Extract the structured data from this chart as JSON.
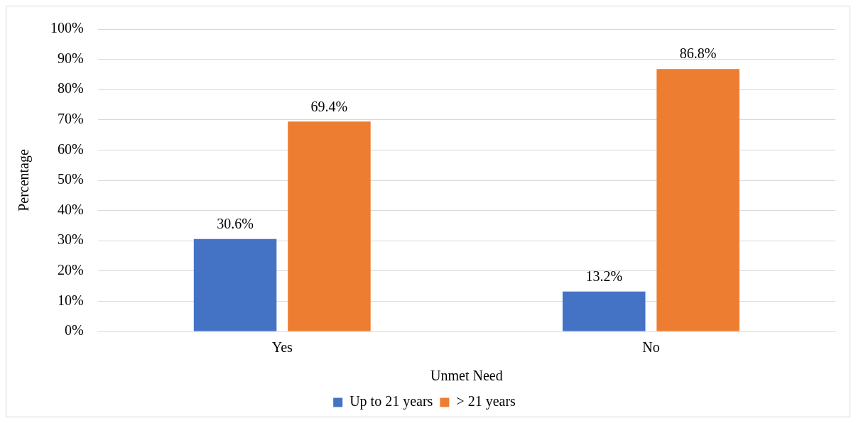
{
  "chart_data": {
    "type": "bar",
    "xlabel": "Unmet Need",
    "ylabel": "Percentage",
    "categories": [
      "Yes",
      "No"
    ],
    "series": [
      {
        "name": "Up to 21 years",
        "color": "#4472c4",
        "values": [
          30.6,
          13.2
        ],
        "value_labels": [
          "30.6%",
          "13.2%"
        ]
      },
      {
        "name": "> 21 years",
        "color": "#ed7d31",
        "values": [
          69.4,
          86.8
        ],
        "value_labels": [
          "69.4%",
          "86.8%"
        ]
      }
    ],
    "ylim": [
      0,
      100
    ],
    "yticks": [
      {
        "value": 0,
        "label": "0%"
      },
      {
        "value": 10,
        "label": "10%"
      },
      {
        "value": 20,
        "label": "20%"
      },
      {
        "value": 30,
        "label": "30%"
      },
      {
        "value": 40,
        "label": "40%"
      },
      {
        "value": 50,
        "label": "50%"
      },
      {
        "value": 60,
        "label": "60%"
      },
      {
        "value": 70,
        "label": "70%"
      },
      {
        "value": 80,
        "label": "80%"
      },
      {
        "value": 90,
        "label": "90%"
      },
      {
        "value": 100,
        "label": "100%"
      }
    ],
    "grid": "y",
    "legend": "bottom"
  }
}
